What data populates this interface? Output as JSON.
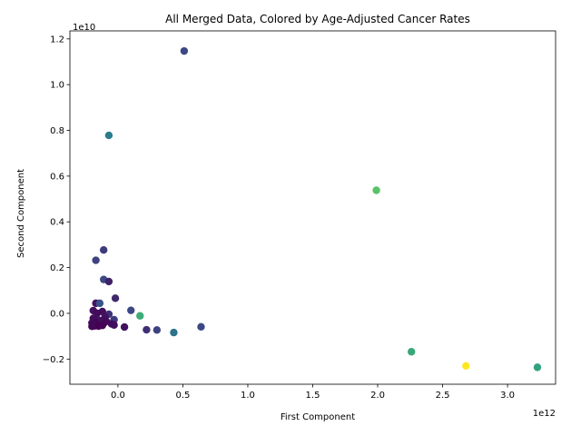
{
  "chart_data": {
    "type": "scatter",
    "title": "All Merged Data, Colored by Age-Adjusted Cancer Rates",
    "xlabel": "First Component",
    "ylabel": "Second Component",
    "x_offset_label": "1e12",
    "y_offset_label": "1e10",
    "xlim": [
      -0.37,
      3.37
    ],
    "ylim": [
      -0.31,
      1.235
    ],
    "xticks": [
      0.0,
      0.5,
      1.0,
      1.5,
      2.0,
      2.5,
      3.0
    ],
    "xtick_labels": [
      "0.0",
      "0.5",
      "1.0",
      "1.5",
      "2.0",
      "2.5",
      "3.0"
    ],
    "yticks": [
      -0.2,
      0.0,
      0.2,
      0.4,
      0.6,
      0.8,
      1.0,
      1.2
    ],
    "ytick_labels": [
      "−0.2",
      "0.0",
      "0.2",
      "0.4",
      "0.6",
      "0.8",
      "1.0",
      "1.2"
    ],
    "grid": false,
    "colormap": "viridis",
    "points": [
      {
        "x": 0.51,
        "y": 1.147,
        "c": 0.22
      },
      {
        "x": -0.07,
        "y": 0.778,
        "c": 0.42
      },
      {
        "x": 1.99,
        "y": 0.538,
        "c": 0.72
      },
      {
        "x": -0.11,
        "y": 0.277,
        "c": 0.18
      },
      {
        "x": -0.17,
        "y": 0.232,
        "c": 0.2
      },
      {
        "x": -0.11,
        "y": 0.148,
        "c": 0.22
      },
      {
        "x": -0.07,
        "y": 0.139,
        "c": 0.1
      },
      {
        "x": -0.02,
        "y": 0.066,
        "c": 0.12
      },
      {
        "x": -0.17,
        "y": 0.044,
        "c": 0.06
      },
      {
        "x": -0.14,
        "y": 0.044,
        "c": 0.25
      },
      {
        "x": 0.1,
        "y": 0.013,
        "c": 0.22
      },
      {
        "x": -0.19,
        "y": 0.012,
        "c": 0.05
      },
      {
        "x": -0.12,
        "y": 0.008,
        "c": 0.04
      },
      {
        "x": -0.16,
        "y": 0.0,
        "c": 0.03
      },
      {
        "x": -0.07,
        "y": -0.004,
        "c": 0.15
      },
      {
        "x": 0.17,
        "y": -0.011,
        "c": 0.62
      },
      {
        "x": -0.1,
        "y": -0.015,
        "c": 0.05
      },
      {
        "x": -0.19,
        "y": -0.022,
        "c": 0.04
      },
      {
        "x": -0.03,
        "y": -0.028,
        "c": 0.18
      },
      {
        "x": -0.15,
        "y": -0.03,
        "c": 0.06
      },
      {
        "x": -0.12,
        "y": -0.032,
        "c": 0.04
      },
      {
        "x": -0.09,
        "y": -0.035,
        "c": 0.03
      },
      {
        "x": -0.17,
        "y": -0.038,
        "c": 0.02
      },
      {
        "x": -0.13,
        "y": -0.04,
        "c": 0.05
      },
      {
        "x": -0.2,
        "y": -0.042,
        "c": 0.03
      },
      {
        "x": -0.11,
        "y": -0.044,
        "c": 0.02
      },
      {
        "x": -0.05,
        "y": -0.046,
        "c": 0.03
      },
      {
        "x": -0.16,
        "y": -0.047,
        "c": 0.01
      },
      {
        "x": -0.14,
        "y": -0.049,
        "c": 0.03
      },
      {
        "x": -0.19,
        "y": -0.05,
        "c": 0.02
      },
      {
        "x": -0.03,
        "y": -0.051,
        "c": 0.04
      },
      {
        "x": -0.12,
        "y": -0.053,
        "c": 0.01
      },
      {
        "x": -0.18,
        "y": -0.055,
        "c": 0.03
      },
      {
        "x": -0.15,
        "y": -0.056,
        "c": 0.0
      },
      {
        "x": -0.2,
        "y": -0.057,
        "c": 0.02
      },
      {
        "x": 0.05,
        "y": -0.06,
        "c": 0.05
      },
      {
        "x": 0.64,
        "y": -0.059,
        "c": 0.22
      },
      {
        "x": 0.22,
        "y": -0.072,
        "c": 0.14
      },
      {
        "x": 0.3,
        "y": -0.073,
        "c": 0.2
      },
      {
        "x": 0.43,
        "y": -0.084,
        "c": 0.38
      },
      {
        "x": 2.26,
        "y": -0.168,
        "c": 0.6
      },
      {
        "x": 2.68,
        "y": -0.23,
        "c": 1.0
      },
      {
        "x": 3.23,
        "y": -0.236,
        "c": 0.57
      }
    ]
  }
}
